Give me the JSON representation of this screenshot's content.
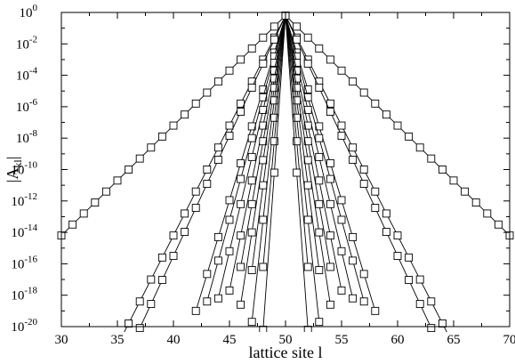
{
  "chart_data": {
    "type": "line",
    "title": "",
    "xlabel": "lattice site l",
    "ylabel": "|A_kl|",
    "ylabel_parts": {
      "base": "|A",
      "sub": "kl",
      "end": "|"
    },
    "x_scale": "linear",
    "y_scale": "log",
    "xlim": [
      30,
      70
    ],
    "ylim": [
      1e-20,
      1
    ],
    "x_ticks": [
      30,
      35,
      40,
      45,
      50,
      55,
      60,
      65,
      70
    ],
    "x_tick_labels": [
      "30",
      "35",
      "40",
      "45",
      "50",
      "55",
      "60",
      "65",
      "70"
    ],
    "y_ticks_exponents": [
      0,
      -2,
      -4,
      -6,
      -8,
      -10,
      -12,
      -14,
      -16,
      -18,
      -20
    ],
    "y_tick_labels": [
      "10",
      "10",
      "10",
      "10",
      "10",
      "10",
      "10",
      "10",
      "10",
      "10",
      "10"
    ],
    "y_tick_exponent_labels": [
      "0",
      "-2",
      "-4",
      "-6",
      "-8",
      "-10",
      "-12",
      "-14",
      "-16",
      "-18",
      "-20"
    ],
    "grid": false,
    "legend": "none",
    "marker": "open-square",
    "peak_x": 50,
    "peak_y_log10": -0.2,
    "series": [
      {
        "slope_log10_per_site": 0.7,
        "x_range": [
          30,
          70
        ]
      },
      {
        "slope_log10_per_site": 1.4,
        "x_range": [
          35,
          65
        ]
      },
      {
        "slope_log10_per_site": 1.53,
        "x_range": [
          37,
          63
        ]
      },
      {
        "slope_log10_per_site": 2.35,
        "x_range": [
          42,
          58
        ]
      },
      {
        "slope_log10_per_site": 2.6,
        "x_range": [
          43,
          57
        ]
      },
      {
        "slope_log10_per_site": 3.0,
        "x_range": [
          44,
          56
        ]
      },
      {
        "slope_log10_per_site": 3.5,
        "x_range": [
          45,
          55
        ]
      },
      {
        "slope_log10_per_site": 4.0,
        "x_range": [
          46,
          54
        ]
      },
      {
        "slope_log10_per_site": 4.6,
        "x_range": [
          46,
          54
        ]
      },
      {
        "slope_log10_per_site": 5.4,
        "x_range": [
          47,
          53
        ]
      },
      {
        "slope_log10_per_site": 6.5,
        "x_range": [
          47,
          53
        ]
      },
      {
        "slope_log10_per_site": 8.0,
        "x_range": [
          48,
          52
        ]
      },
      {
        "slope_log10_per_site": 10.0,
        "x_range": [
          48,
          52
        ]
      }
    ]
  }
}
